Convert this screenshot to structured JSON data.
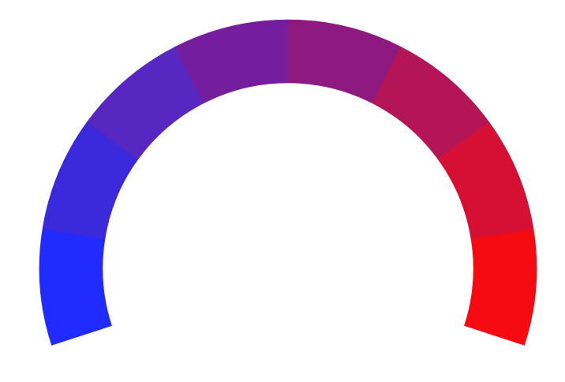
{
  "gauge": {
    "type": "gradient-arc-gauge",
    "segments": [
      {
        "color": "#1f2bff"
      },
      {
        "color": "#3b29dc"
      },
      {
        "color": "#5826c0"
      },
      {
        "color": "#741e9e"
      },
      {
        "color": "#8e1a80"
      },
      {
        "color": "#b31556"
      },
      {
        "color": "#d61034"
      },
      {
        "color": "#f60a12"
      }
    ]
  }
}
